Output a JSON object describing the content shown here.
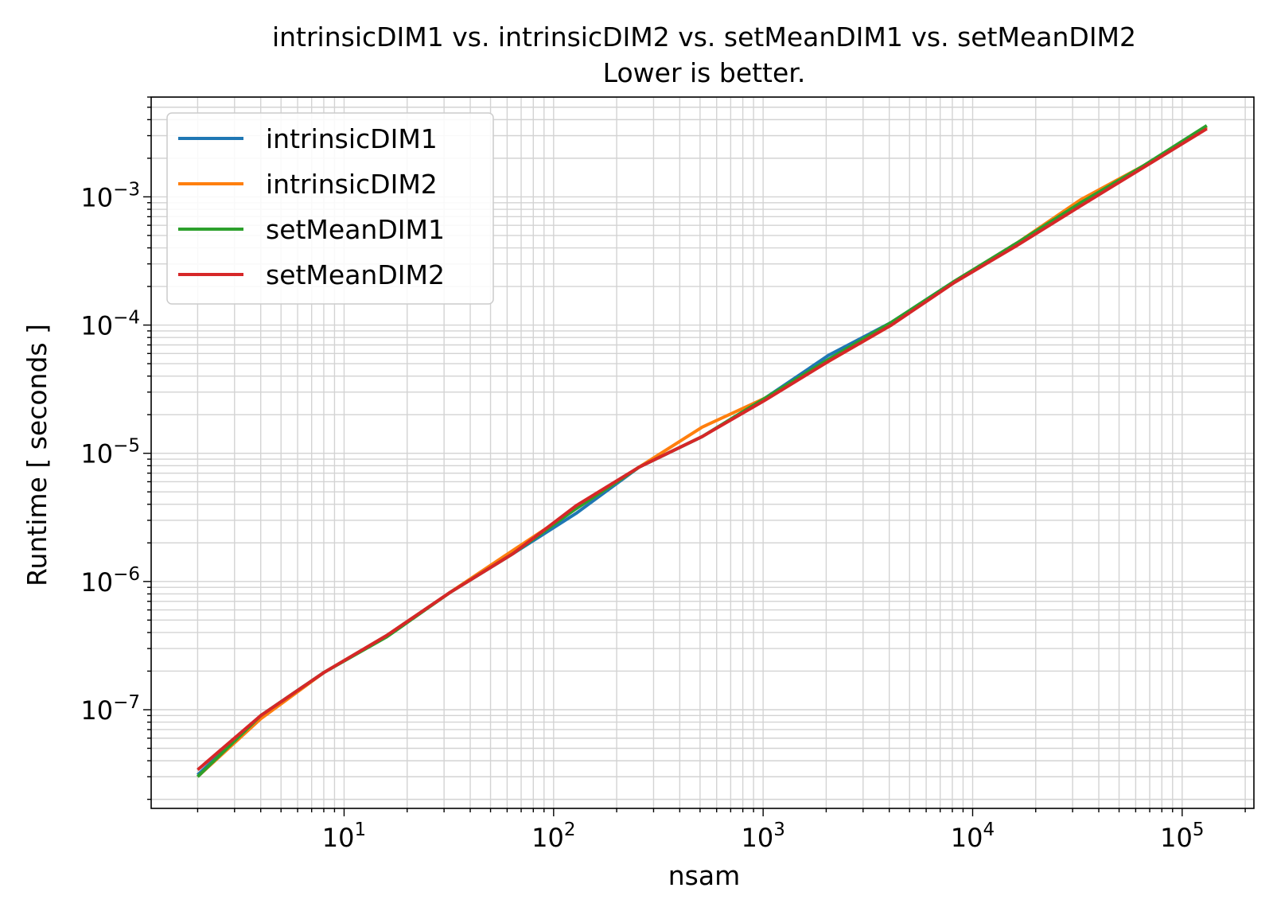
{
  "chart_data": {
    "type": "line",
    "title": "intrinsicDIM1 vs. intrinsicDIM2 vs. setMeanDIM1 vs. setMeanDIM2",
    "subtitle": "Lower is better.",
    "xlabel": "nsam",
    "ylabel": "Runtime [ seconds ]",
    "xscale": "log",
    "yscale": "log",
    "xlim": [
      1.2,
      220000
    ],
    "ylim": [
      1.7e-08,
      0.006
    ],
    "grid": true,
    "legend_position": "top-left",
    "x_ticks": [
      {
        "base": "10",
        "exp": "1",
        "value": 10
      },
      {
        "base": "10",
        "exp": "2",
        "value": 100
      },
      {
        "base": "10",
        "exp": "3",
        "value": 1000
      },
      {
        "base": "10",
        "exp": "4",
        "value": 10000
      },
      {
        "base": "10",
        "exp": "5",
        "value": 100000
      }
    ],
    "y_ticks": [
      {
        "base": "10",
        "exp": "−7",
        "value": 1e-07
      },
      {
        "base": "10",
        "exp": "−6",
        "value": 1e-06
      },
      {
        "base": "10",
        "exp": "−5",
        "value": 1e-05
      },
      {
        "base": "10",
        "exp": "−4",
        "value": 0.0001
      },
      {
        "base": "10",
        "exp": "−3",
        "value": 0.001
      }
    ],
    "x": [
      2,
      4,
      8,
      16,
      32,
      64,
      128,
      256,
      512,
      1024,
      2048,
      4096,
      8192,
      16384,
      32768,
      65536,
      131072
    ],
    "series": [
      {
        "name": "intrinsicDIM1",
        "color": "#1f77b4",
        "values": [
          3.1e-08,
          9e-08,
          1.95e-07,
          3.8e-07,
          8.2e-07,
          1.65e-06,
          3.4e-06,
          7.8e-06,
          1.35e-05,
          2.7e-05,
          5.8e-05,
          0.000105,
          0.00022,
          0.00044,
          0.0009,
          0.00175,
          0.0035
        ]
      },
      {
        "name": "intrinsicDIM2",
        "color": "#ff7f0e",
        "values": [
          3e-08,
          8.5e-08,
          1.95e-07,
          3.8e-07,
          8.2e-07,
          1.75e-06,
          3.7e-06,
          7.8e-06,
          1.6e-05,
          2.7e-05,
          5.2e-05,
          0.0001,
          0.00022,
          0.00044,
          0.00095,
          0.00175,
          0.0035
        ]
      },
      {
        "name": "setMeanDIM1",
        "color": "#2ca02c",
        "values": [
          3e-08,
          9e-08,
          1.95e-07,
          3.7e-07,
          8.2e-07,
          1.65e-06,
          3.7e-06,
          7.8e-06,
          1.35e-05,
          2.7e-05,
          5.4e-05,
          0.000105,
          0.00022,
          0.00044,
          0.0009,
          0.00175,
          0.0036
        ]
      },
      {
        "name": "setMeanDIM2",
        "color": "#d62728",
        "values": [
          3.4e-08,
          9e-08,
          1.95e-07,
          3.8e-07,
          8.2e-07,
          1.65e-06,
          3.9e-06,
          7.8e-06,
          1.35e-05,
          2.6e-05,
          5.2e-05,
          0.0001,
          0.000215,
          0.00042,
          0.00085,
          0.0017,
          0.0034
        ]
      }
    ]
  }
}
